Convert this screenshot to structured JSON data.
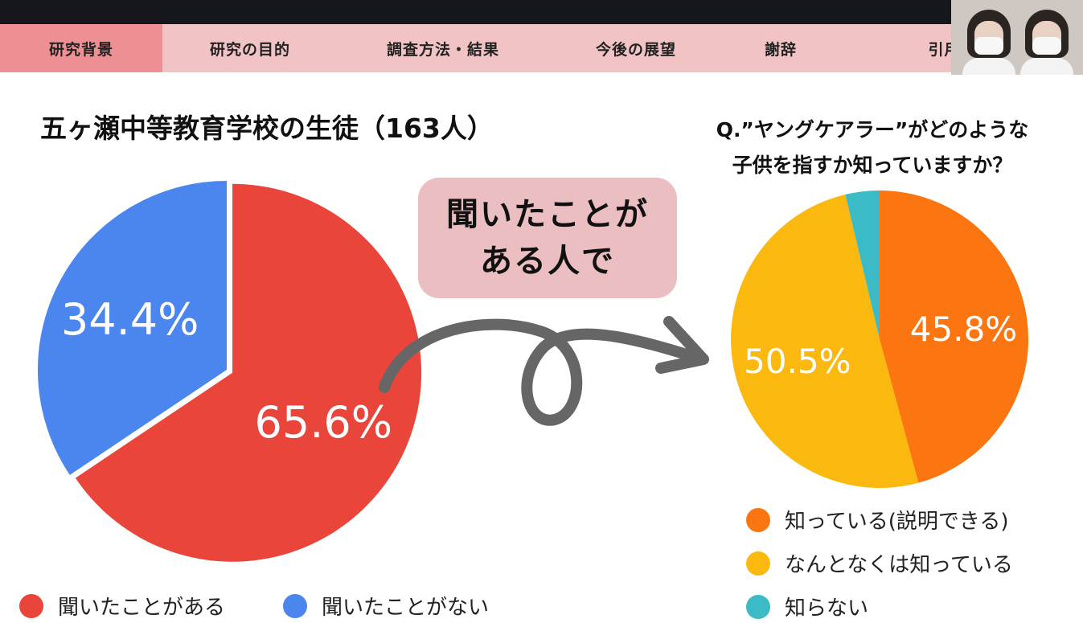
{
  "nav": {
    "tabs": [
      "研究背景",
      "研究の目的",
      "調査方法・結果",
      "今後の展望",
      "謝辞",
      "引用文献"
    ],
    "active": 0
  },
  "colors": {
    "nav_bg": "#f2c3c5",
    "nav_active": "#ee8f93",
    "red": "#e9453a",
    "blue": "#4a86ee",
    "orange": "#fb7610",
    "yellow": "#fbb910",
    "teal": "#3cbbc7",
    "callout": "#ebbfc1",
    "arrow": "#666666"
  },
  "callout": {
    "line1": "聞いたことが",
    "line2": "ある人で"
  },
  "chart_data": [
    {
      "type": "pie",
      "title": "五ヶ瀬中等教育学校の生徒（163人）",
      "slices": [
        {
          "label": "聞いたことがある",
          "value": 65.6,
          "display": "65.6%",
          "color": "#e9453a"
        },
        {
          "label": "聞いたことがない",
          "value": 34.4,
          "display": "34.4%",
          "color": "#4a86ee"
        }
      ],
      "legend_position": "bottom"
    },
    {
      "type": "pie",
      "title": "Q.”ヤングケアラー”がどのような子供を指すか知っていますか？",
      "title_lines": [
        "Q.”ヤングケアラー”がどのような",
        "子供を指すか知っていますか？"
      ],
      "slices": [
        {
          "label": "知っている(説明できる)",
          "value": 45.8,
          "display": "45.8%",
          "color": "#fb7610"
        },
        {
          "label": "なんとなくは知っている",
          "value": 50.5,
          "display": "50.5%",
          "color": "#fbb910"
        },
        {
          "label": "知らない",
          "value": 3.7,
          "display": "",
          "color": "#3cbbc7"
        }
      ],
      "legend_position": "bottom"
    }
  ]
}
